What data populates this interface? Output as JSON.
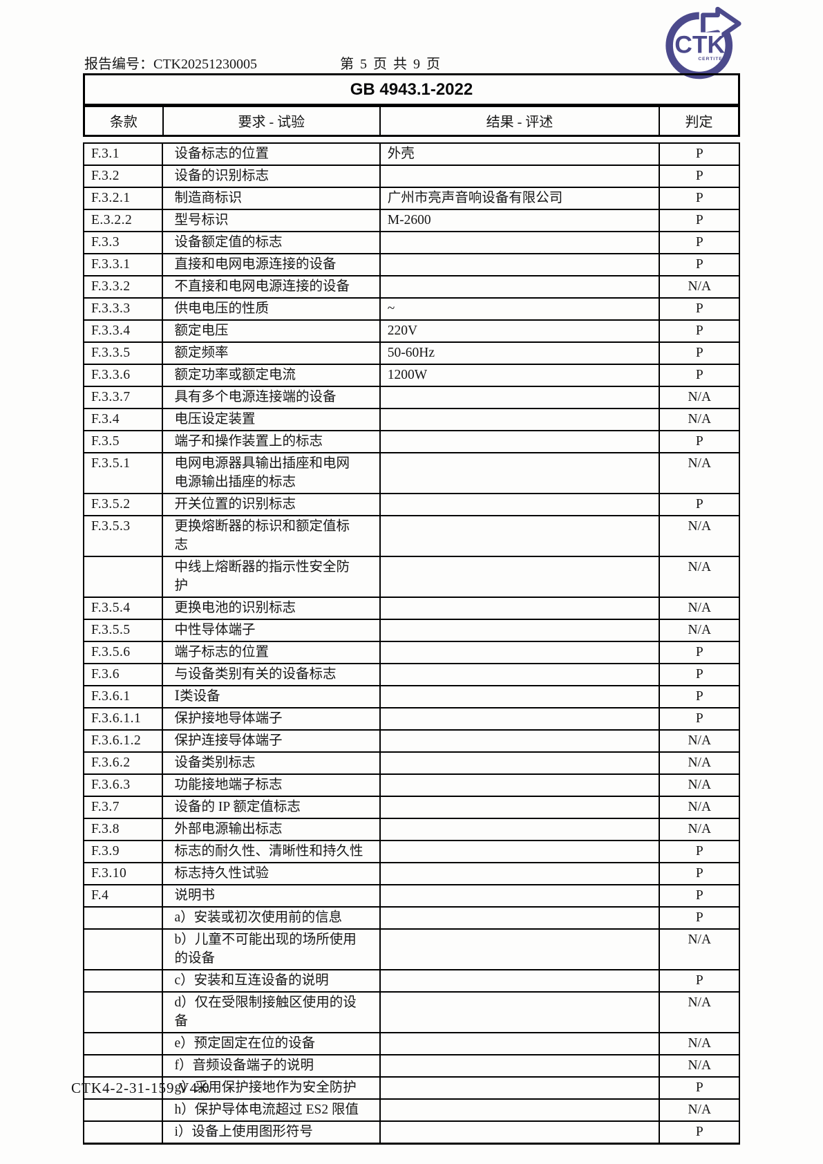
{
  "header": {
    "report_label": "报告编号：CTK20251230005",
    "page_info": "第 5 页 共 9 页",
    "logo": {
      "text": "CTK",
      "subtext": "CERTITEK",
      "color": "#4c4a8c"
    }
  },
  "table": {
    "title": "GB 4943.1-2022",
    "columns": {
      "clause": "条款",
      "requirement": "要求 - 试验",
      "result": "结果 - 评述",
      "verdict": "判定"
    },
    "rows": [
      {
        "clause": "F.3.1",
        "requirement": "设备标志的位置",
        "result": "外壳",
        "verdict": "P"
      },
      {
        "clause": "F.3.2",
        "requirement": "设备的识别标志",
        "result": "",
        "verdict": "P"
      },
      {
        "clause": "F.3.2.1",
        "requirement": "制造商标识",
        "result": "广州市亮声音响设备有限公司",
        "verdict": "P"
      },
      {
        "clause": "E.3.2.2",
        "requirement": "型号标识",
        "result": "M-2600",
        "verdict": "P"
      },
      {
        "clause": "F.3.3",
        "requirement": "设备额定值的标志",
        "result": "",
        "verdict": "P"
      },
      {
        "clause": "F.3.3.1",
        "requirement": "直接和电网电源连接的设备",
        "result": "",
        "verdict": "P"
      },
      {
        "clause": "F.3.3.2",
        "requirement": "不直接和电网电源连接的设备",
        "result": "",
        "verdict": "N/A"
      },
      {
        "clause": "F.3.3.3",
        "requirement": "供电电压的性质",
        "result": "~",
        "verdict": "P"
      },
      {
        "clause": "F.3.3.4",
        "requirement": "额定电压",
        "result": "220V",
        "verdict": "P"
      },
      {
        "clause": "F.3.3.5",
        "requirement": "额定频率",
        "result": "50-60Hz",
        "verdict": "P"
      },
      {
        "clause": "F.3.3.6",
        "requirement": "额定功率或额定电流",
        "result": "1200W",
        "verdict": "P"
      },
      {
        "clause": "F.3.3.7",
        "requirement": "具有多个电源连接端的设备",
        "result": "",
        "verdict": "N/A"
      },
      {
        "clause": "F.3.4",
        "requirement": "电压设定装置",
        "result": "",
        "verdict": "N/A"
      },
      {
        "clause": "F.3.5",
        "requirement": "端子和操作装置上的标志",
        "result": "",
        "verdict": "P"
      },
      {
        "clause": "F.3.5.1",
        "requirement": "电网电源器具输出插座和电网\n电源输出插座的标志",
        "result": "",
        "verdict": "N/A"
      },
      {
        "clause": "F.3.5.2",
        "requirement": "开关位置的识别标志",
        "result": "",
        "verdict": "P"
      },
      {
        "clause": "F.3.5.3",
        "requirement": "更换熔断器的标识和额定值标\n志",
        "result": "",
        "verdict": "N/A"
      },
      {
        "clause": "",
        "requirement": "中线上熔断器的指示性安全防\n护",
        "result": "",
        "verdict": "N/A"
      },
      {
        "clause": "F.3.5.4",
        "requirement": "更换电池的识别标志",
        "result": "",
        "verdict": "N/A"
      },
      {
        "clause": "F.3.5.5",
        "requirement": "中性导体端子",
        "result": "",
        "verdict": "N/A"
      },
      {
        "clause": "F.3.5.6",
        "requirement": "端子标志的位置",
        "result": "",
        "verdict": "P"
      },
      {
        "clause": "F.3.6",
        "requirement": "与设备类别有关的设备标志",
        "result": "",
        "verdict": "P"
      },
      {
        "clause": "F.3.6.1",
        "requirement": "Ⅰ类设备",
        "result": "",
        "verdict": "P"
      },
      {
        "clause": "F.3.6.1.1",
        "requirement": "保护接地导体端子",
        "result": "",
        "verdict": "P"
      },
      {
        "clause": "F.3.6.1.2",
        "requirement": "保护连接导体端子",
        "result": "",
        "verdict": "N/A"
      },
      {
        "clause": "F.3.6.2",
        "requirement": "设备类别标志",
        "result": "",
        "verdict": "N/A"
      },
      {
        "clause": "F.3.6.3",
        "requirement": "功能接地端子标志",
        "result": "",
        "verdict": "N/A"
      },
      {
        "clause": "F.3.7",
        "requirement": "设备的 IP 额定值标志",
        "result": "",
        "verdict": "N/A"
      },
      {
        "clause": "F.3.8",
        "requirement": "外部电源输出标志",
        "result": "",
        "verdict": "N/A"
      },
      {
        "clause": "F.3.9",
        "requirement": "标志的耐久性、清晰性和持久性",
        "result": "",
        "verdict": "P"
      },
      {
        "clause": "F.3.10",
        "requirement": "标志持久性试验",
        "result": "",
        "verdict": "P"
      },
      {
        "clause": "F.4",
        "requirement": "说明书",
        "result": "",
        "verdict": "P"
      },
      {
        "clause": "",
        "requirement": "a）安装或初次使用前的信息",
        "result": "",
        "verdict": "P"
      },
      {
        "clause": "",
        "requirement": "b）儿童不可能出现的场所使用\n的设备",
        "result": "",
        "verdict": "N/A"
      },
      {
        "clause": "",
        "requirement": "c）安装和互连设备的说明",
        "result": "",
        "verdict": "P"
      },
      {
        "clause": "",
        "requirement": "d）仅在受限制接触区使用的设\n备",
        "result": "",
        "verdict": "N/A"
      },
      {
        "clause": "",
        "requirement": "e）预定固定在位的设备",
        "result": "",
        "verdict": "N/A"
      },
      {
        "clause": "",
        "requirement": "f）音频设备端子的说明",
        "result": "",
        "verdict": "N/A"
      },
      {
        "clause": "",
        "requirement": "g）采用保护接地作为安全防护",
        "result": "",
        "verdict": "P"
      },
      {
        "clause": "",
        "requirement": "h）保护导体电流超过 ES2 限值",
        "result": "",
        "verdict": "N/A"
      },
      {
        "clause": "",
        "requirement": "i）设备上使用图形符号",
        "result": "",
        "verdict": "P"
      }
    ]
  },
  "footer": {
    "doc_code": "CTK4-2-31-159 V4.0"
  }
}
